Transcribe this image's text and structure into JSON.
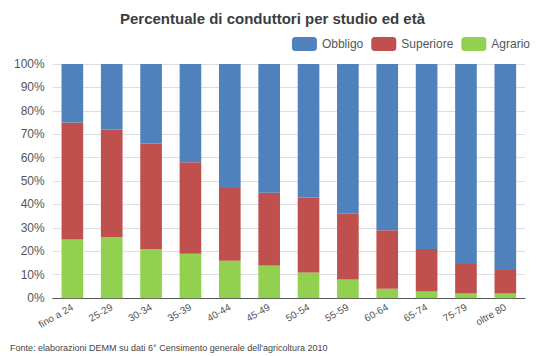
{
  "chart_data": {
    "type": "bar",
    "stacked": true,
    "title": "Percentuale di conduttori per studio ed età",
    "source": "Fonte: elaborazioni DEMM su dati 6° Censimento generale dell'agricoltura 2010",
    "categories": [
      "fino a 24",
      "25-29",
      "30-34",
      "35-39",
      "40-44",
      "45-49",
      "50-54",
      "55-59",
      "60-64",
      "65-74",
      "75-79",
      "oltre 80"
    ],
    "series": [
      {
        "name": "Agrario",
        "color": "#92D050",
        "values": [
          25,
          26,
          21,
          19,
          16,
          14,
          11,
          8,
          4,
          3,
          2,
          2
        ]
      },
      {
        "name": "Superiore",
        "color": "#C0504D",
        "values": [
          50,
          46,
          45,
          39,
          31,
          31,
          32,
          28,
          25,
          18,
          13,
          10
        ]
      },
      {
        "name": "Obbligo",
        "color": "#4F81BD",
        "values": [
          25,
          28,
          34,
          42,
          53,
          55,
          57,
          64,
          71,
          79,
          85,
          88
        ]
      }
    ],
    "ylim": [
      0,
      100
    ],
    "yticks": [
      {
        "value": 0,
        "label": "0%"
      },
      {
        "value": 10,
        "label": "10%"
      },
      {
        "value": 20,
        "label": "20%"
      },
      {
        "value": 30,
        "label": "30%"
      },
      {
        "value": 40,
        "label": "40%"
      },
      {
        "value": 50,
        "label": "50%"
      },
      {
        "value": 60,
        "label": "60%"
      },
      {
        "value": 70,
        "label": "70%"
      },
      {
        "value": 80,
        "label": "80%"
      },
      {
        "value": 90,
        "label": "90%"
      },
      {
        "value": 100,
        "label": "100%"
      }
    ],
    "grid": true,
    "legend": "upper right"
  }
}
